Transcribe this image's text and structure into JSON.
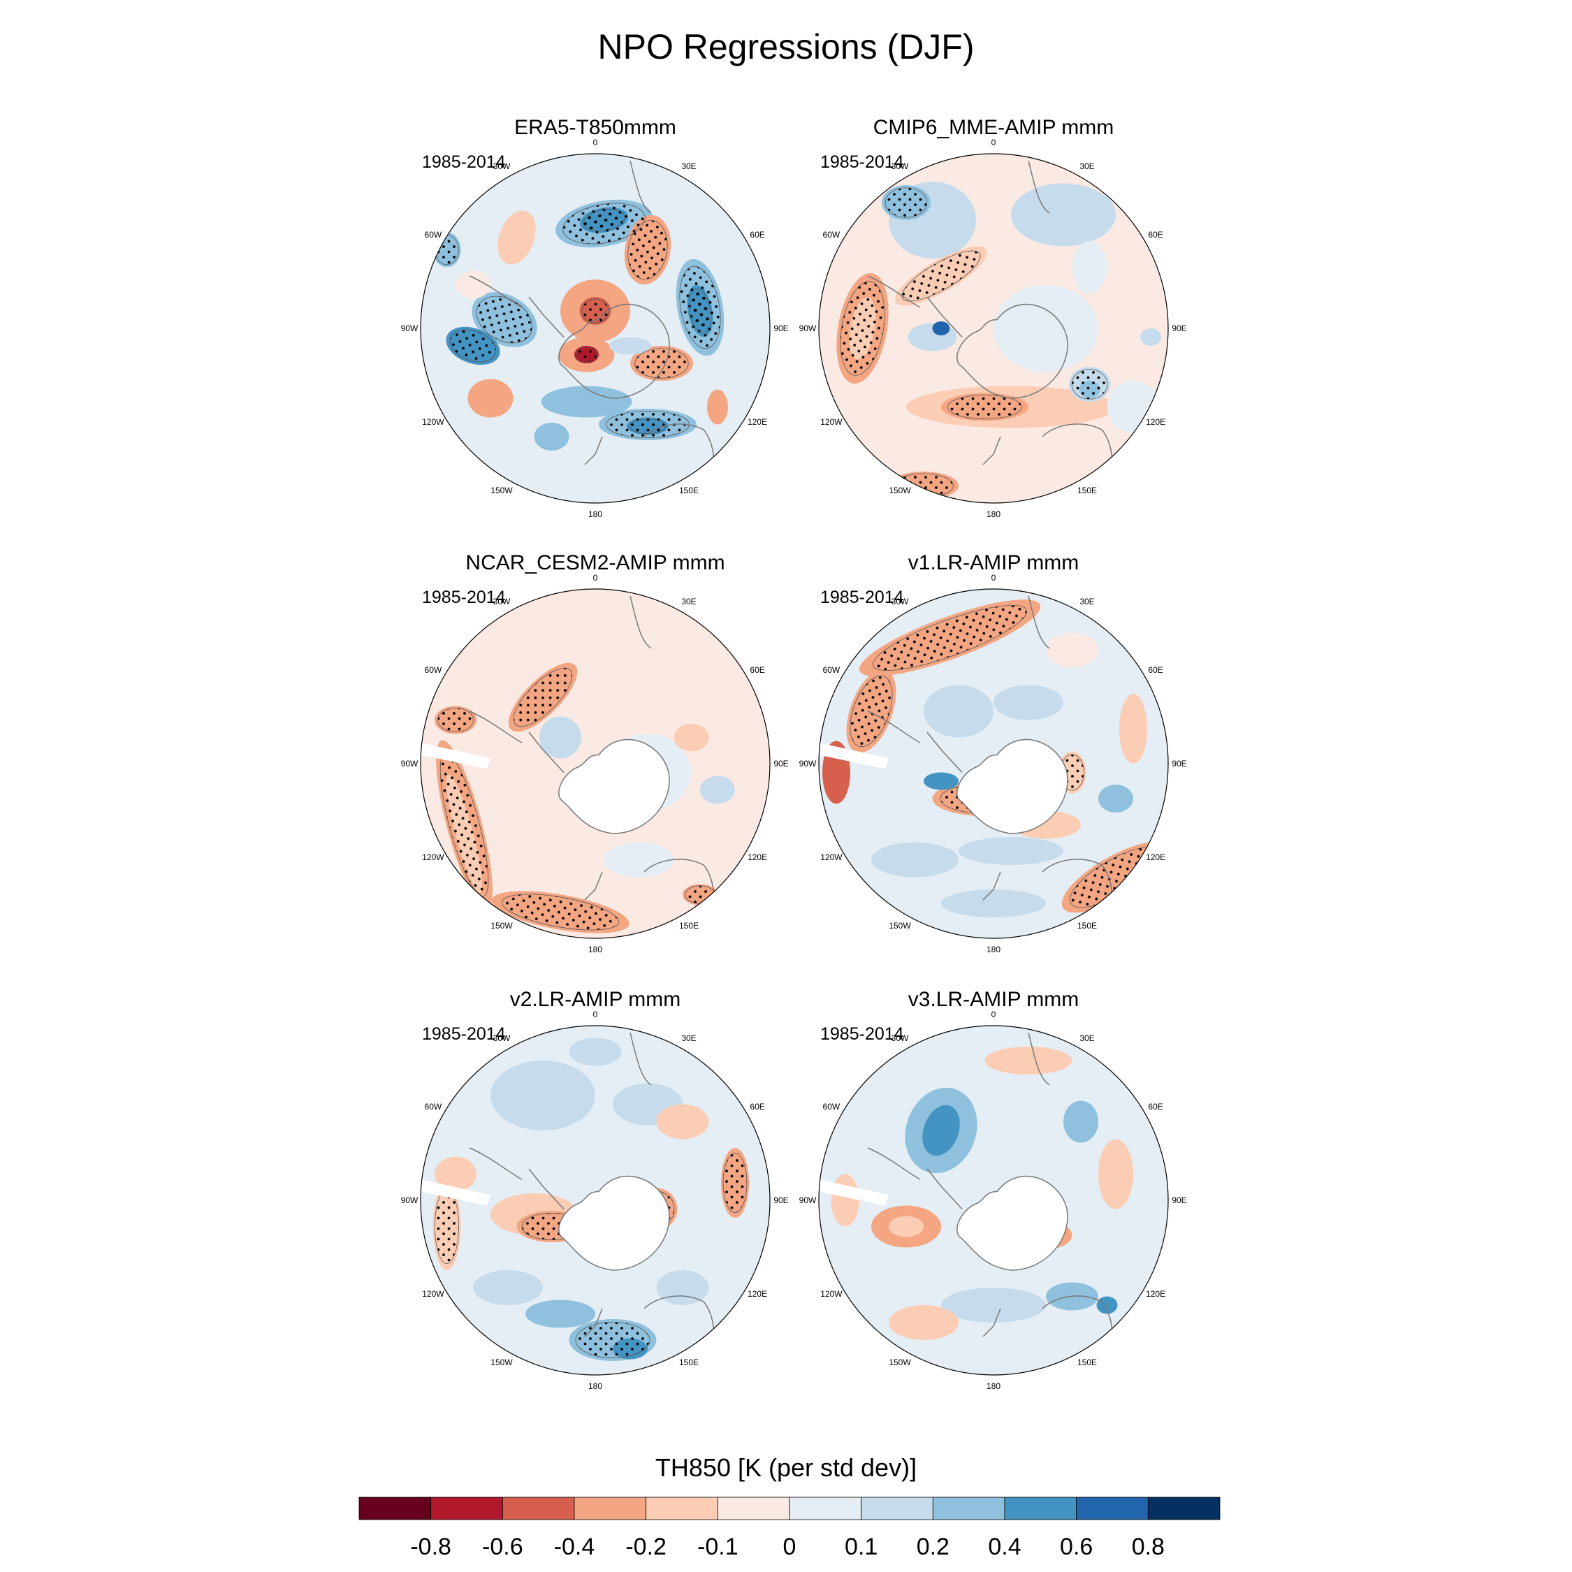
{
  "title": "NPO Regressions (DJF)",
  "colors": {
    "palette": [
      "#67001f",
      "#b2182b",
      "#d6604d",
      "#f4a582",
      "#fbcdb5",
      "#fbeae3",
      "#e5eef4",
      "#c6dcec",
      "#8fc1de",
      "#4393c3",
      "#2166ac",
      "#053061"
    ],
    "coast": "#777777",
    "stipple": "#000000"
  },
  "panels": [
    {
      "id": "era5",
      "title": "ERA5-T850mmm",
      "period": "1985-2014"
    },
    {
      "id": "cmip6",
      "title": "CMIP6_MME-AMIP  mmm",
      "period": "1985-2014"
    },
    {
      "id": "cesm2",
      "title": "NCAR_CESM2-AMIP  mmm",
      "period": "1985-2014"
    },
    {
      "id": "v1",
      "title": "v1.LR-AMIP  mmm",
      "period": "1985-2014"
    },
    {
      "id": "v2",
      "title": "v2.LR-AMIP  mmm",
      "period": "1985-2014"
    },
    {
      "id": "v3",
      "title": "v3.LR-AMIP  mmm",
      "period": "1985-2014"
    }
  ],
  "longitude_labels": [
    "0",
    "30E",
    "60E",
    "90E",
    "120E",
    "150E",
    "180",
    "150W",
    "120W",
    "90W",
    "60W",
    "30W"
  ],
  "chart_data": {
    "type": "heatmap",
    "projection": "south polar stereographic",
    "variable": "TH850",
    "colorbar": {
      "title": "TH850 [K (per std dev)]",
      "levels": [
        "-0.8",
        "-0.6",
        "-0.4",
        "-0.2",
        "-0.1",
        "0",
        "0.1",
        "0.2",
        "0.4",
        "0.6",
        "0.8"
      ]
    }
  }
}
